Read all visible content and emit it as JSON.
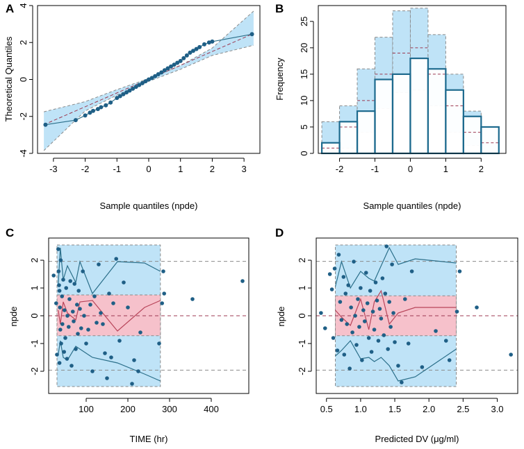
{
  "colors": {
    "blue_band": "#bfe3f7",
    "pink_band": "#f6c1cb",
    "point": "#1f5f86",
    "line_blue": "#2b6f8a",
    "line_red": "#b8455a",
    "dash_red": "#9c3850",
    "dash_grey": "#8a8a8a",
    "hist_edge": "#1d6a8e"
  },
  "chart_data": [
    {
      "panel": "A",
      "type": "scatter",
      "xlabel": "Sample quantiles (npde)",
      "ylabel": "Theoretical Quantiles",
      "xlim": [
        -3.5,
        3.5
      ],
      "ylim": [
        -4,
        4
      ],
      "xticks": [
        "-3",
        "-2",
        "-1",
        "0",
        "1",
        "2",
        "3"
      ],
      "yticks": [
        "-4",
        "-2",
        "0",
        "2",
        "4"
      ],
      "ref_line": [
        [
          -3.3,
          -2.45
        ],
        [
          3.25,
          2.45
        ]
      ],
      "band_upper": [
        [
          -3.3,
          -1.75
        ],
        [
          -2,
          -1.2
        ],
        [
          -1,
          -0.55
        ],
        [
          0,
          0.05
        ],
        [
          1,
          0.75
        ],
        [
          2,
          1.7
        ],
        [
          3.3,
          3.7
        ]
      ],
      "band_lower": [
        [
          -3.3,
          -3.85
        ],
        [
          -2,
          -1.7
        ],
        [
          -1,
          -0.85
        ],
        [
          0,
          -0.1
        ],
        [
          1,
          0.55
        ],
        [
          2,
          1.3
        ],
        [
          3.3,
          1.85
        ]
      ],
      "points": [
        [
          -3.25,
          -2.45
        ],
        [
          -2.3,
          -2.2
        ],
        [
          -2.0,
          -1.95
        ],
        [
          -1.85,
          -1.8
        ],
        [
          -1.75,
          -1.7
        ],
        [
          -1.6,
          -1.6
        ],
        [
          -1.5,
          -1.5
        ],
        [
          -1.35,
          -1.4
        ],
        [
          -1.2,
          -1.25
        ],
        [
          -1.0,
          -1.0
        ],
        [
          -0.9,
          -0.9
        ],
        [
          -0.8,
          -0.8
        ],
        [
          -0.7,
          -0.7
        ],
        [
          -0.6,
          -0.6
        ],
        [
          -0.5,
          -0.5
        ],
        [
          -0.4,
          -0.4
        ],
        [
          -0.3,
          -0.3
        ],
        [
          -0.2,
          -0.2
        ],
        [
          -0.1,
          -0.1
        ],
        [
          0.0,
          0.0
        ],
        [
          0.1,
          0.08
        ],
        [
          0.2,
          0.18
        ],
        [
          0.3,
          0.28
        ],
        [
          0.4,
          0.38
        ],
        [
          0.5,
          0.5
        ],
        [
          0.6,
          0.6
        ],
        [
          0.7,
          0.7
        ],
        [
          0.8,
          0.8
        ],
        [
          0.9,
          0.9
        ],
        [
          1.0,
          1.0
        ],
        [
          1.1,
          1.15
        ],
        [
          1.2,
          1.3
        ],
        [
          1.3,
          1.45
        ],
        [
          1.4,
          1.55
        ],
        [
          1.5,
          1.65
        ],
        [
          1.6,
          1.75
        ],
        [
          1.75,
          1.9
        ],
        [
          1.9,
          2.0
        ],
        [
          2.0,
          2.05
        ],
        [
          3.25,
          2.45
        ]
      ]
    },
    {
      "panel": "B",
      "type": "bar",
      "xlabel": "Sample quantiles (npde)",
      "ylabel": "Frequency",
      "xlim": [
        -2.6,
        2.7
      ],
      "ylim": [
        0,
        28
      ],
      "xticks": [
        "-2",
        "-1",
        "0",
        "1",
        "2"
      ],
      "yticks": [
        "0",
        "5",
        "10",
        "15",
        "20",
        "25"
      ],
      "bin_edges": [
        -2.5,
        -2,
        -1.5,
        -1,
        -0.5,
        0,
        0.5,
        1,
        1.5,
        2,
        2.5
      ],
      "counts": [
        2,
        6,
        8,
        14,
        15,
        18,
        16,
        12,
        7,
        5
      ],
      "band_lo": [
        0,
        1,
        4,
        8.5,
        11.5,
        12,
        9,
        4,
        1.5,
        0
      ],
      "band_hi": [
        6,
        9,
        16,
        22,
        27,
        27.5,
        22.5,
        15,
        8,
        5
      ],
      "expected": [
        1,
        5,
        10,
        15,
        19,
        20,
        15,
        9,
        4,
        2
      ]
    },
    {
      "panel": "C",
      "type": "scatter",
      "xlabel": "TIME (hr)",
      "ylabel": "npde",
      "xlim": [
        10,
        490
      ],
      "ylim": [
        -2.8,
        2.8
      ],
      "xticks": [
        "100",
        "200",
        "300",
        "400"
      ],
      "yticks": [
        "-2",
        "-1",
        "0",
        "1",
        "2"
      ],
      "hlines": [
        -1.96,
        0,
        1.96
      ],
      "band_x": [
        30,
        278
      ],
      "blue_band": [
        -2.55,
        2.55
      ],
      "pink_band": [
        -0.72,
        0.75
      ],
      "upper_line": [
        [
          33,
          1.1
        ],
        [
          38,
          2.45
        ],
        [
          45,
          1.3
        ],
        [
          55,
          1.8
        ],
        [
          75,
          1.2
        ],
        [
          85,
          1.95
        ],
        [
          115,
          0.8
        ],
        [
          175,
          1.95
        ],
        [
          240,
          1.9
        ],
        [
          278,
          1.6
        ]
      ],
      "median_line": [
        [
          33,
          0.2
        ],
        [
          38,
          -0.3
        ],
        [
          45,
          0.5
        ],
        [
          55,
          0.1
        ],
        [
          75,
          -0.15
        ],
        [
          85,
          0.5
        ],
        [
          115,
          0.55
        ],
        [
          175,
          -0.55
        ],
        [
          240,
          0.3
        ],
        [
          278,
          0.55
        ]
      ],
      "lower_line": [
        [
          33,
          -1.4
        ],
        [
          38,
          -0.9
        ],
        [
          45,
          -1.5
        ],
        [
          55,
          -1.6
        ],
        [
          75,
          -1.1
        ],
        [
          85,
          -1.2
        ],
        [
          115,
          -1.5
        ],
        [
          175,
          -1.7
        ],
        [
          240,
          -2.1
        ],
        [
          278,
          -2.35
        ]
      ],
      "points": [
        [
          22,
          1.45
        ],
        [
          28,
          0.45
        ],
        [
          30,
          -1.4
        ],
        [
          33,
          2.4
        ],
        [
          34,
          1.6
        ],
        [
          35,
          1.1
        ],
        [
          36,
          0.9
        ],
        [
          36,
          -1.7
        ],
        [
          37,
          0.3
        ],
        [
          38,
          -0.5
        ],
        [
          39,
          2.0
        ],
        [
          40,
          -1.0
        ],
        [
          42,
          0.7
        ],
        [
          43,
          -0.3
        ],
        [
          45,
          1.3
        ],
        [
          47,
          -1.3
        ],
        [
          48,
          0.2
        ],
        [
          50,
          -0.8
        ],
        [
          52,
          1.0
        ],
        [
          54,
          -1.55
        ],
        [
          55,
          0.0
        ],
        [
          58,
          -0.4
        ],
        [
          60,
          0.6
        ],
        [
          62,
          1.25
        ],
        [
          65,
          -1.8
        ],
        [
          68,
          0.15
        ],
        [
          70,
          -0.2
        ],
        [
          72,
          1.15
        ],
        [
          75,
          -1.2
        ],
        [
          78,
          0.4
        ],
        [
          80,
          -0.65
        ],
        [
          82,
          0.9
        ],
        [
          85,
          0.25
        ],
        [
          88,
          -0.45
        ],
        [
          92,
          1.6
        ],
        [
          95,
          0.0
        ],
        [
          100,
          -1.0
        ],
        [
          105,
          -0.5
        ],
        [
          110,
          0.4
        ],
        [
          115,
          -2.0
        ],
        [
          120,
          0.7
        ],
        [
          125,
          -0.25
        ],
        [
          130,
          1.85
        ],
        [
          135,
          0.1
        ],
        [
          140,
          -0.3
        ],
        [
          145,
          -1.35
        ],
        [
          150,
          -2.25
        ],
        [
          155,
          0.8
        ],
        [
          160,
          -1.5
        ],
        [
          165,
          0.45
        ],
        [
          172,
          2.05
        ],
        [
          180,
          -0.9
        ],
        [
          190,
          1.2
        ],
        [
          200,
          0.3
        ],
        [
          210,
          -2.45
        ],
        [
          215,
          -1.6
        ],
        [
          225,
          -2.0
        ],
        [
          230,
          -0.6
        ],
        [
          275,
          -1.0
        ],
        [
          282,
          0.45
        ],
        [
          287,
          0.8
        ],
        [
          285,
          1.6
        ],
        [
          355,
          0.6
        ],
        [
          475,
          1.25
        ]
      ]
    },
    {
      "panel": "D",
      "type": "scatter",
      "xlabel": "Predicted DV (μg/ml)",
      "ylabel": "npde",
      "xlim": [
        0.35,
        3.3
      ],
      "ylim": [
        -2.8,
        2.8
      ],
      "xticks": [
        "0.5",
        "1.0",
        "1.5",
        "2.0",
        "2.5",
        "3.0"
      ],
      "yticks": [
        "-2",
        "-1",
        "0",
        "1",
        "2"
      ],
      "hlines": [
        -1.96,
        0,
        1.96
      ],
      "band_x": [
        0.63,
        2.4
      ],
      "blue_band": [
        -2.55,
        2.55
      ],
      "pink_band": [
        -0.72,
        0.72
      ],
      "upper_line": [
        [
          0.63,
          1.05
        ],
        [
          0.72,
          1.95
        ],
        [
          0.85,
          1.0
        ],
        [
          1.0,
          1.6
        ],
        [
          1.12,
          1.35
        ],
        [
          1.2,
          1.25
        ],
        [
          1.3,
          1.8
        ],
        [
          1.42,
          2.45
        ],
        [
          1.55,
          1.85
        ],
        [
          1.8,
          2.05
        ],
        [
          2.4,
          1.9
        ]
      ],
      "median_line": [
        [
          0.63,
          0.2
        ],
        [
          0.72,
          -0.05
        ],
        [
          0.85,
          -0.35
        ],
        [
          1.0,
          0.6
        ],
        [
          1.12,
          -0.5
        ],
        [
          1.2,
          0.5
        ],
        [
          1.3,
          0.9
        ],
        [
          1.42,
          -0.3
        ],
        [
          1.55,
          0.1
        ],
        [
          1.8,
          0.3
        ],
        [
          2.4,
          0.3
        ]
      ],
      "lower_line": [
        [
          0.63,
          -1.45
        ],
        [
          0.72,
          -1.25
        ],
        [
          0.85,
          -0.9
        ],
        [
          1.0,
          -1.55
        ],
        [
          1.12,
          -1.5
        ],
        [
          1.2,
          -1.65
        ],
        [
          1.3,
          -1.5
        ],
        [
          1.42,
          -1.8
        ],
        [
          1.55,
          -2.35
        ],
        [
          1.8,
          -2.2
        ],
        [
          2.4,
          -1.2
        ]
      ],
      "points": [
        [
          0.42,
          0.1
        ],
        [
          0.48,
          -0.45
        ],
        [
          0.55,
          1.5
        ],
        [
          0.58,
          0.95
        ],
        [
          0.6,
          -0.8
        ],
        [
          0.62,
          1.7
        ],
        [
          0.66,
          -1.25
        ],
        [
          0.68,
          2.2
        ],
        [
          0.7,
          0.5
        ],
        [
          0.72,
          -0.15
        ],
        [
          0.75,
          1.4
        ],
        [
          0.76,
          -1.4
        ],
        [
          0.78,
          0.8
        ],
        [
          0.8,
          -0.3
        ],
        [
          0.82,
          1.1
        ],
        [
          0.84,
          -1.9
        ],
        [
          0.86,
          0.3
        ],
        [
          0.88,
          -0.6
        ],
        [
          0.9,
          1.95
        ],
        [
          0.92,
          0.0
        ],
        [
          0.94,
          -1.05
        ],
        [
          0.96,
          0.6
        ],
        [
          0.98,
          -0.4
        ],
        [
          1.0,
          1.0
        ],
        [
          1.02,
          -1.6
        ],
        [
          1.04,
          0.2
        ],
        [
          1.06,
          -0.2
        ],
        [
          1.08,
          1.55
        ],
        [
          1.1,
          0.45
        ],
        [
          1.12,
          -0.8
        ],
        [
          1.14,
          0.9
        ],
        [
          1.16,
          -1.3
        ],
        [
          1.18,
          0.15
        ],
        [
          1.2,
          -0.5
        ],
        [
          1.22,
          1.2
        ],
        [
          1.24,
          0.55
        ],
        [
          1.26,
          -0.9
        ],
        [
          1.28,
          0.25
        ],
        [
          1.3,
          -0.1
        ],
        [
          1.32,
          1.35
        ],
        [
          1.34,
          -0.7
        ],
        [
          1.36,
          0.8
        ],
        [
          1.38,
          2.5
        ],
        [
          1.4,
          -1.2
        ],
        [
          1.42,
          0.5
        ],
        [
          1.44,
          -0.4
        ],
        [
          1.46,
          1.85
        ],
        [
          1.48,
          0.1
        ],
        [
          1.5,
          -0.95
        ],
        [
          1.55,
          -1.8
        ],
        [
          1.6,
          -2.4
        ],
        [
          1.65,
          0.6
        ],
        [
          1.7,
          -1.0
        ],
        [
          1.75,
          1.6
        ],
        [
          1.9,
          -1.85
        ],
        [
          2.1,
          -0.55
        ],
        [
          2.25,
          -0.9
        ],
        [
          2.3,
          -1.6
        ],
        [
          2.41,
          0.15
        ],
        [
          2.45,
          1.6
        ],
        [
          2.7,
          0.3
        ],
        [
          3.2,
          -1.4
        ]
      ]
    }
  ],
  "panels": {
    "A": {
      "letter": "A",
      "xlabel": "Sample quantiles (npde)",
      "ylabel": "Theoretical Quantiles"
    },
    "B": {
      "letter": "B",
      "xlabel": "Sample quantiles (npde)",
      "ylabel": "Frequency"
    },
    "C": {
      "letter": "C",
      "xlabel": "TIME (hr)",
      "ylabel": "npde"
    },
    "D": {
      "letter": "D",
      "xlabel": "Predicted DV (μg/ml)",
      "ylabel": "npde"
    }
  }
}
